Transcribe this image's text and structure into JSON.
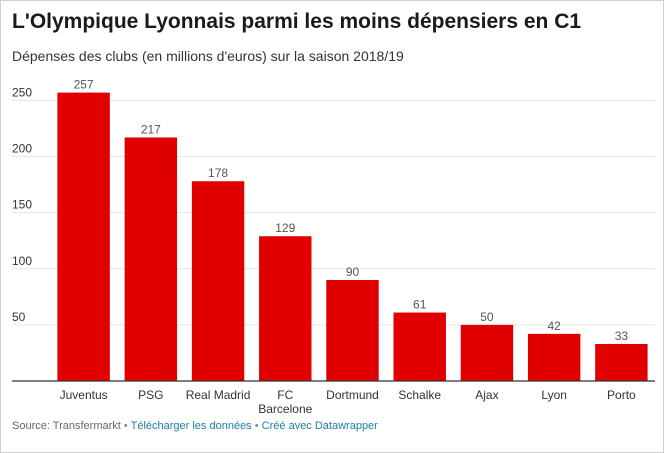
{
  "header": {
    "title": "L'Olympique Lyonnais parmi les moins dépensiers en C1",
    "subtitle": "Dépenses des clubs (en millions d'euros) sur la saison 2018/19"
  },
  "footer": {
    "source": "Source: Transfermarkt",
    "separator": "•",
    "download_link": "Télécharger les données",
    "made_with_link": "Créé avec Datawrapper"
  },
  "colors": {
    "bar": "#e00000",
    "grid": "#e5e5e5",
    "axis": "#333333",
    "label": "#333333",
    "value_label": "#555555",
    "link": "#1d81a2"
  },
  "chart_data": {
    "type": "bar",
    "categories": [
      [
        "Juventus"
      ],
      [
        "PSG"
      ],
      [
        "Real Madrid"
      ],
      [
        "FC",
        "Barcelone"
      ],
      [
        "Dortmund"
      ],
      [
        "Schalke"
      ],
      [
        "Ajax"
      ],
      [
        "Lyon"
      ],
      [
        "Porto"
      ]
    ],
    "values": [
      257,
      217,
      178,
      129,
      90,
      61,
      50,
      42,
      33
    ],
    "ylim": [
      0,
      270
    ],
    "yticks": [
      50,
      100,
      150,
      200,
      250
    ],
    "grid": true
  }
}
